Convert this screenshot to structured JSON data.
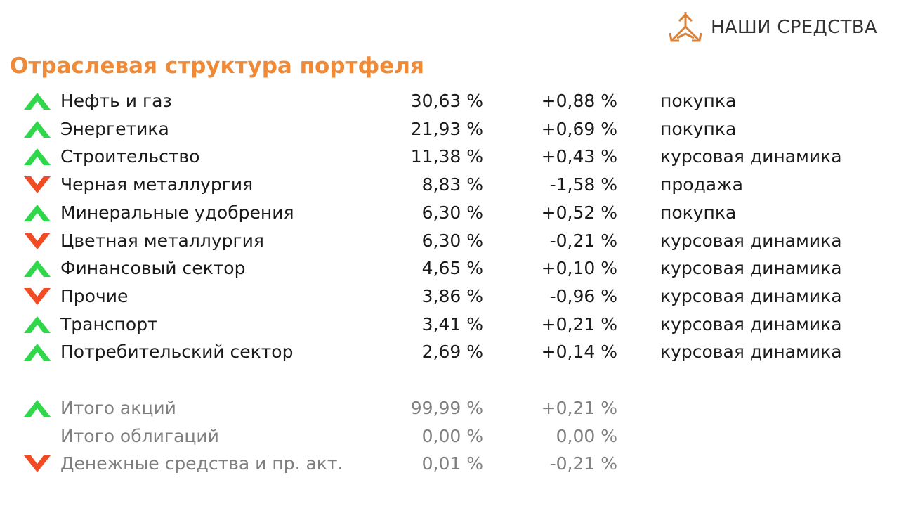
{
  "logo": {
    "text": "НАШИ СРЕДСТВА"
  },
  "title": "Отраслевая структура портфеля",
  "colors": {
    "title": "#ee8a38",
    "up": "#2fd84a",
    "down": "#f24a22",
    "total_text": "#7f7f7f",
    "logo": "#d9823a"
  },
  "sectors": [
    {
      "name": "Нефть и газ",
      "share": "30,63 %",
      "change": "+0,88 %",
      "action": "покупка",
      "trend": "up"
    },
    {
      "name": "Энергетика",
      "share": "21,93 %",
      "change": "+0,69 %",
      "action": "покупка",
      "trend": "up"
    },
    {
      "name": "Строительство",
      "share": "11,38 %",
      "change": "+0,43 %",
      "action": "курсовая динамика",
      "trend": "up"
    },
    {
      "name": "Черная металлургия",
      "share": "8,83 %",
      "change": "-1,58 %",
      "action": "продажа",
      "trend": "down"
    },
    {
      "name": "Минеральные удобрения",
      "share": "6,30 %",
      "change": "+0,52 %",
      "action": "покупка",
      "trend": "up"
    },
    {
      "name": "Цветная металлургия",
      "share": "6,30 %",
      "change": "-0,21 %",
      "action": "курсовая динамика",
      "trend": "down"
    },
    {
      "name": "Финансовый сектор",
      "share": "4,65 %",
      "change": "+0,10 %",
      "action": "курсовая динамика",
      "trend": "up"
    },
    {
      "name": "Прочие",
      "share": "3,86 %",
      "change": "-0,96 %",
      "action": "курсовая динамика",
      "trend": "down"
    },
    {
      "name": "Транспорт",
      "share": "3,41 %",
      "change": "+0,21 %",
      "action": "курсовая динамика",
      "trend": "up"
    },
    {
      "name": "Потребительский сектор",
      "share": "2,69 %",
      "change": "+0,14 %",
      "action": "курсовая динамика",
      "trend": "up"
    }
  ],
  "totals": [
    {
      "name": "Итого акций",
      "share": "99,99 %",
      "change": "+0,21 %",
      "trend": "up"
    },
    {
      "name": "Итого облигаций",
      "share": "0,00 %",
      "change": "0,00 %",
      "trend": "none"
    },
    {
      "name": "Денежные средства и пр. акт.",
      "share": "0,01 %",
      "change": "-0,21 %",
      "trend": "down"
    }
  ]
}
